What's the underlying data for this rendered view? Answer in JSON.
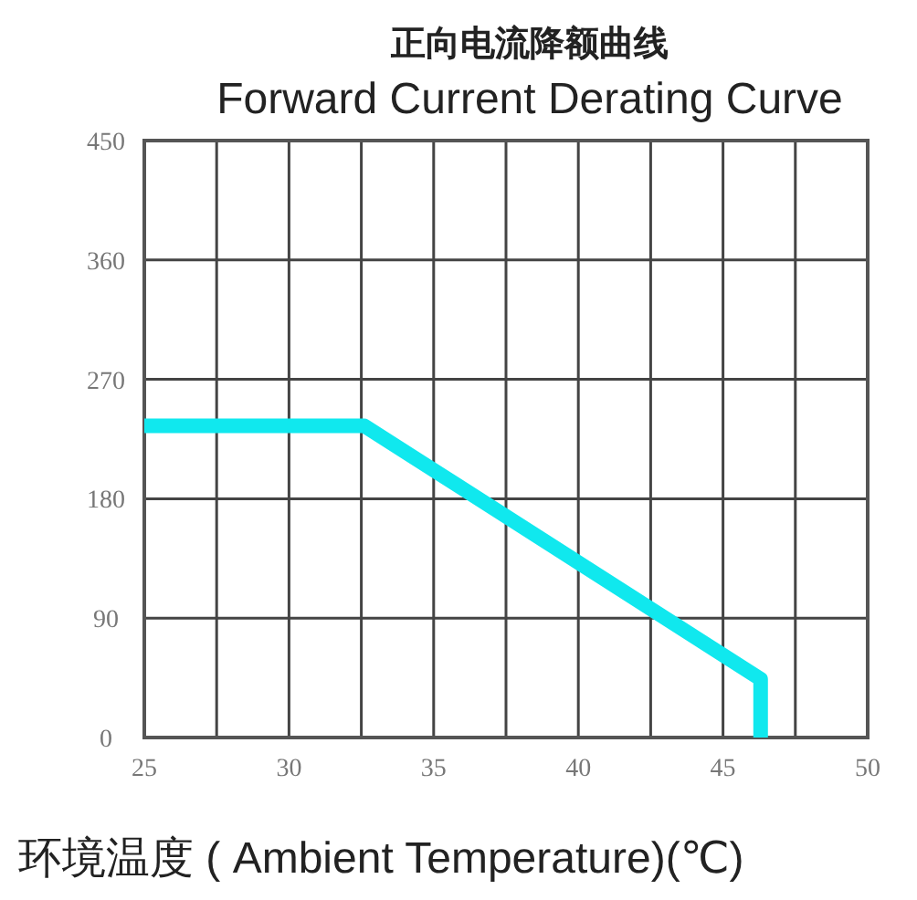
{
  "chart_data": {
    "type": "line",
    "title": "正向电流降额曲线",
    "subtitle": "Forward Current Derating Curve",
    "xlabel": "环境温度 ( Ambient Temperature)(℃)",
    "series": [
      {
        "color": "#10e8ee",
        "x": [
          25,
          32.6,
          46.3,
          46.3
        ],
        "values": [
          235,
          235,
          44,
          0
        ]
      }
    ],
    "xlim": [
      25,
      50
    ],
    "xticks": [
      25,
      {
        "value": 27.5,
        "label": null
      },
      30,
      {
        "value": 32.5,
        "label": null
      },
      35,
      {
        "value": 37.5,
        "label": null
      },
      40,
      {
        "value": 42.5,
        "label": null
      },
      45,
      {
        "value": 47.5,
        "label": null
      },
      50
    ],
    "ylim": [
      0,
      450
    ],
    "yticks": [
      0,
      90,
      180,
      270,
      360,
      450
    ],
    "grid": true
  }
}
